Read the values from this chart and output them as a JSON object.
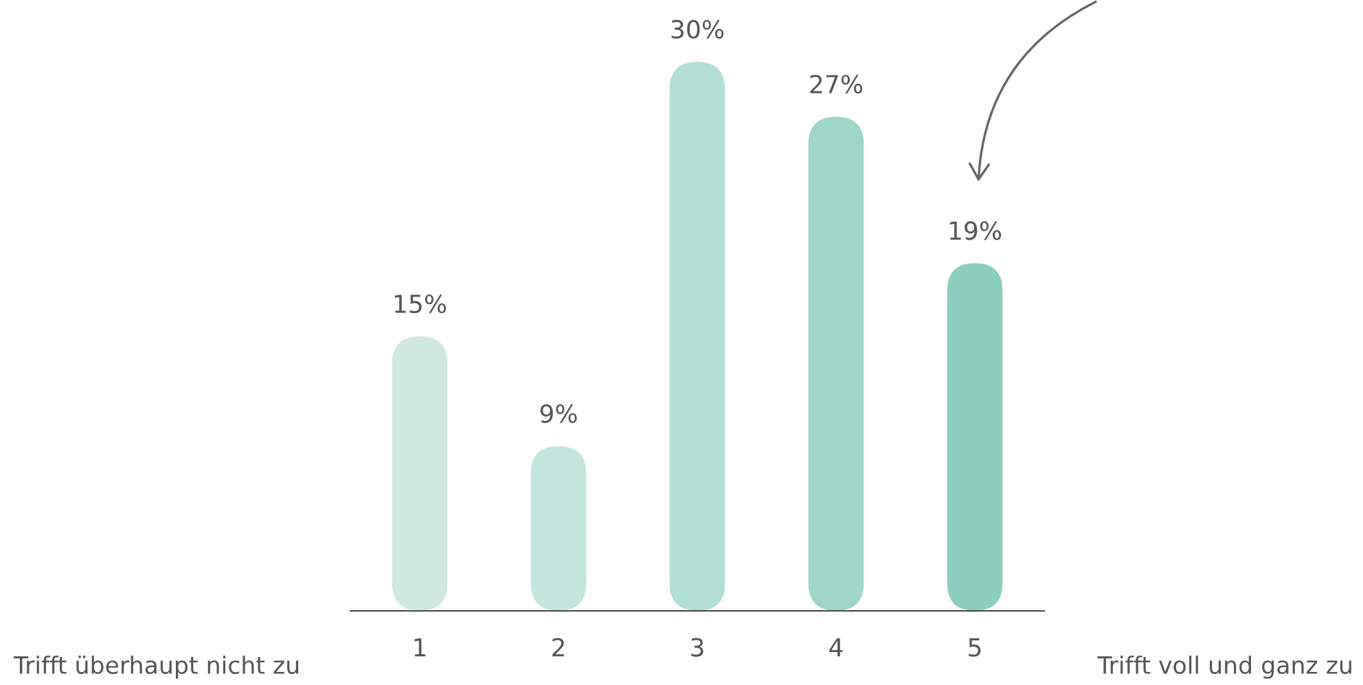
{
  "chart_data": {
    "type": "bar",
    "categories": [
      "1",
      "2",
      "3",
      "4",
      "5"
    ],
    "values": [
      15,
      9,
      30,
      27,
      19
    ],
    "colors": [
      "#cfe9e1",
      "#c2e5dc",
      "#b2dfd3",
      "#9dd6c7",
      "#8ccfbf"
    ],
    "value_labels": [
      "15%",
      "9%",
      "30%",
      "27%",
      "19%"
    ],
    "tick_labels": "x",
    "annotations": [
      "Trifft überhaupt nicht zu",
      "Trifft voll und ganz zu"
    ]
  }
}
